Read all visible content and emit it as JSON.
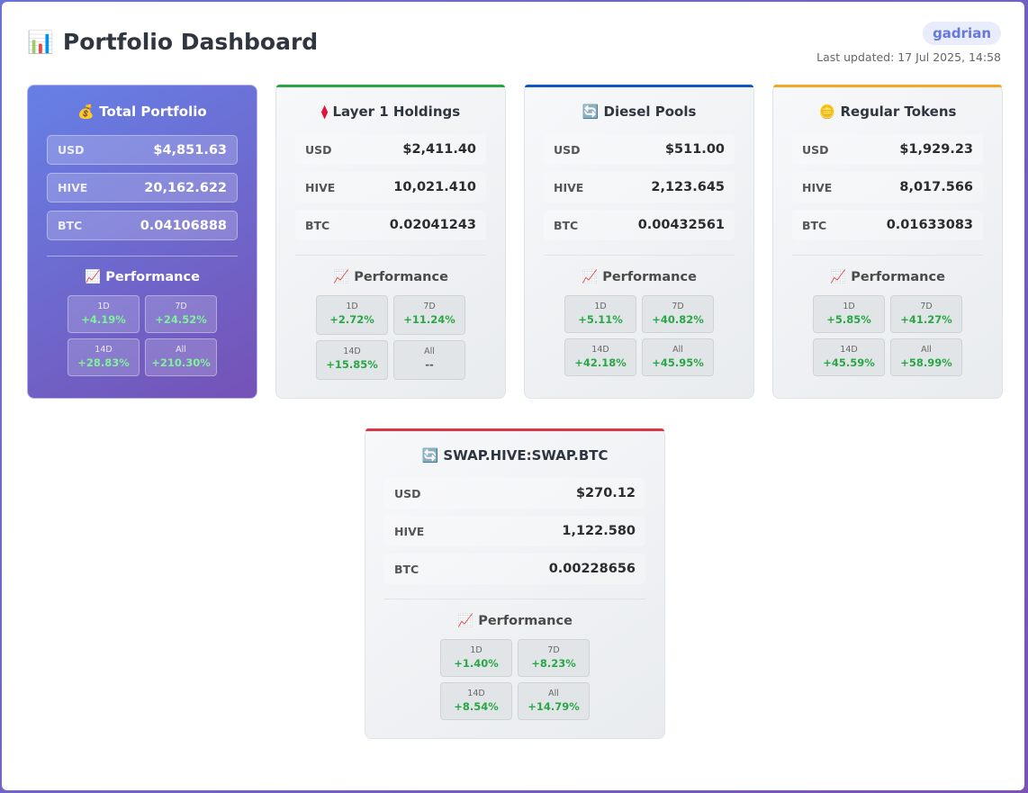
{
  "header": {
    "icon": "📊",
    "title": "Portfolio Dashboard",
    "user": "gadrian",
    "updated": "Last updated: 17 Jul 2025, 14:58"
  },
  "colors": {
    "layer1_accent": "#28a745",
    "diesel_accent": "#0d57c4",
    "regular_accent": "#f5a623",
    "swap_accent": "#dc3545",
    "positive": "#28a745"
  },
  "cards": {
    "total": {
      "icon": "💰",
      "title": "Total Portfolio",
      "rows": [
        {
          "label": "USD",
          "value": "$4,851.63"
        },
        {
          "label": "HIVE",
          "value": "20,162.622"
        },
        {
          "label": "BTC",
          "value": "0.04106888"
        }
      ],
      "perf_icon": "📈",
      "perf_title": "Performance",
      "perf": [
        {
          "label": "1D",
          "value": "+4.19%"
        },
        {
          "label": "7D",
          "value": "+24.52%"
        },
        {
          "label": "14D",
          "value": "+28.83%"
        },
        {
          "label": "All",
          "value": "+210.30%"
        }
      ]
    },
    "layer1": {
      "icon": "⧫",
      "title": "Layer 1 Holdings",
      "rows": [
        {
          "label": "USD",
          "value": "$2,411.40"
        },
        {
          "label": "HIVE",
          "value": "10,021.410"
        },
        {
          "label": "BTC",
          "value": "0.02041243"
        }
      ],
      "perf_icon": "📈",
      "perf_title": "Performance",
      "perf": [
        {
          "label": "1D",
          "value": "+2.72%"
        },
        {
          "label": "7D",
          "value": "+11.24%"
        },
        {
          "label": "14D",
          "value": "+15.85%"
        },
        {
          "label": "All",
          "value": "--"
        }
      ]
    },
    "diesel": {
      "icon": "🔄",
      "title": "Diesel Pools",
      "rows": [
        {
          "label": "USD",
          "value": "$511.00"
        },
        {
          "label": "HIVE",
          "value": "2,123.645"
        },
        {
          "label": "BTC",
          "value": "0.00432561"
        }
      ],
      "perf_icon": "📈",
      "perf_title": "Performance",
      "perf": [
        {
          "label": "1D",
          "value": "+5.11%"
        },
        {
          "label": "7D",
          "value": "+40.82%"
        },
        {
          "label": "14D",
          "value": "+42.18%"
        },
        {
          "label": "All",
          "value": "+45.95%"
        }
      ]
    },
    "regular": {
      "icon": "🪙",
      "title": "Regular Tokens",
      "rows": [
        {
          "label": "USD",
          "value": "$1,929.23"
        },
        {
          "label": "HIVE",
          "value": "8,017.566"
        },
        {
          "label": "BTC",
          "value": "0.01633083"
        }
      ],
      "perf_icon": "📈",
      "perf_title": "Performance",
      "perf": [
        {
          "label": "1D",
          "value": "+5.85%"
        },
        {
          "label": "7D",
          "value": "+41.27%"
        },
        {
          "label": "14D",
          "value": "+45.59%"
        },
        {
          "label": "All",
          "value": "+58.99%"
        }
      ]
    },
    "swap": {
      "icon": "🔄",
      "title": "SWAP.HIVE:SWAP.BTC",
      "rows": [
        {
          "label": "USD",
          "value": "$270.12"
        },
        {
          "label": "HIVE",
          "value": "1,122.580"
        },
        {
          "label": "BTC",
          "value": "0.00228656"
        }
      ],
      "perf_icon": "📈",
      "perf_title": "Performance",
      "perf": [
        {
          "label": "1D",
          "value": "+1.40%"
        },
        {
          "label": "7D",
          "value": "+8.23%"
        },
        {
          "label": "14D",
          "value": "+8.54%"
        },
        {
          "label": "All",
          "value": "+14.79%"
        }
      ]
    }
  }
}
